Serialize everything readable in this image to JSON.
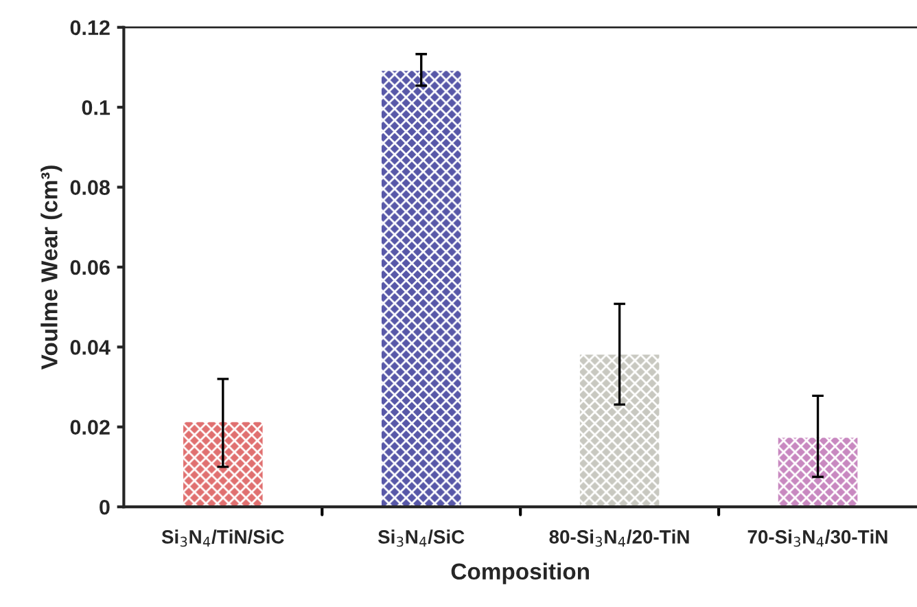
{
  "chart_data": {
    "type": "bar",
    "xlabel": "Composition",
    "ylabel": "Voulme Wear (cm³)",
    "categories": [
      "Si$_{3}$N$_{4}$/TiN/SiC",
      "Si$_{3}$N$_{4}$/SiC",
      "80-Si$_{3}$N$_{4}$/20-TiN",
      "70-Si$_{3}$N$_{4}$/30-TiN"
    ],
    "values": [
      0.0212,
      0.1091,
      0.0381,
      0.0173
    ],
    "colors": [
      "#e07070",
      "#5858a8",
      "#c8c8c0",
      "#c888c0"
    ],
    "errors": [
      [
        0.01,
        0.032
      ],
      [
        0.1054,
        0.1133
      ],
      [
        0.0256,
        0.0508
      ],
      [
        0.0075,
        0.0278
      ]
    ],
    "ylim": [
      0,
      0.12
    ],
    "yticks": [
      0,
      {
        "value": 0.02,
        "label": "0.02"
      },
      {
        "value": 0.04,
        "label": "0.04"
      },
      {
        "value": 0.06,
        "label": "0.06"
      },
      {
        "value": 0.08,
        "label": "0.08"
      },
      {
        "value": 0.1,
        "label": "0.1"
      },
      {
        "value": 0.12,
        "label": "0.12"
      }
    ],
    "grid": false,
    "legend": false
  }
}
